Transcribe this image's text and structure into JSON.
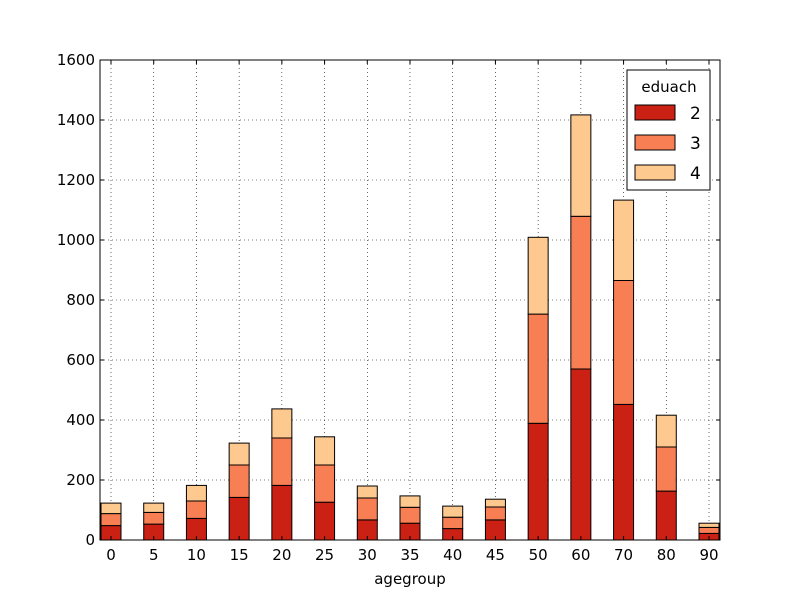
{
  "chart_data": {
    "type": "bar",
    "stacked": true,
    "categories": [
      "0",
      "5",
      "10",
      "15",
      "20",
      "25",
      "30",
      "35",
      "40",
      "45",
      "50",
      "60",
      "70",
      "80",
      "90"
    ],
    "series": [
      {
        "name": "2",
        "color": "#cb2014",
        "values": [
          48,
          53,
          72,
          142,
          182,
          126,
          67,
          56,
          38,
          67,
          389,
          570,
          452,
          163,
          22
        ]
      },
      {
        "name": "3",
        "color": "#f87f54",
        "values": [
          40,
          39,
          58,
          108,
          158,
          124,
          73,
          53,
          38,
          43,
          364,
          509,
          413,
          147,
          20
        ]
      },
      {
        "name": "4",
        "color": "#fec98f",
        "values": [
          35,
          31,
          52,
          73,
          97,
          94,
          40,
          38,
          37,
          26,
          256,
          338,
          268,
          106,
          14
        ]
      }
    ],
    "xlabel": "agegroup",
    "ylabel": "",
    "ylim": [
      0,
      1600
    ],
    "yticks": [
      0,
      200,
      400,
      600,
      800,
      1000,
      1200,
      1400,
      1600
    ],
    "grid": true,
    "legend": {
      "title": "eduach",
      "position": "top-right"
    }
  }
}
